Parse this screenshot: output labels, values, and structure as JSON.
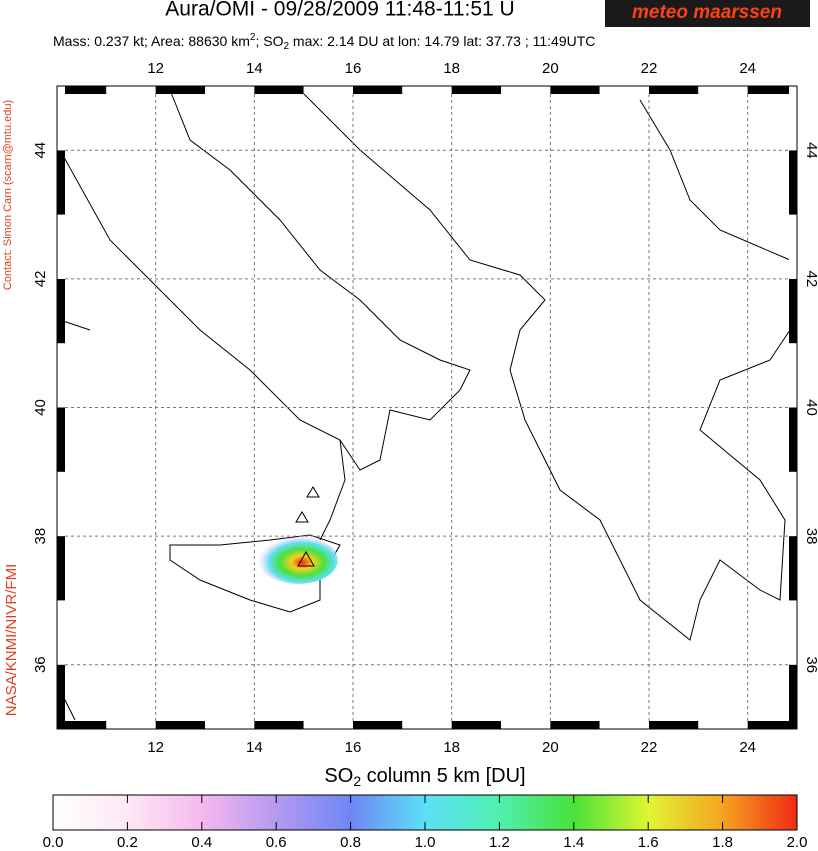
{
  "header": {
    "title": "Aura/OMI - 09/28/2009 11:48-11:51 U",
    "logo": "meteo maarssen",
    "stats": [
      "Mass: 0.237 kt; Area: 88630 km",
      "2",
      "; SO",
      "2",
      " max: 2.14 DU at lon: 14.79 lat: 37.73 ; 11:49UTC"
    ]
  },
  "side": {
    "contact": "Contact: Simon Carn (scarn@mtu.edu)",
    "credit": "NASA/KNMI/NIVR/FMI"
  },
  "map": {
    "xlim": [
      10,
      25
    ],
    "ylim": [
      35,
      45
    ],
    "xticks": [
      12,
      14,
      16,
      18,
      20,
      22,
      24
    ],
    "yticks": [
      36,
      38,
      40,
      42,
      44
    ]
  },
  "colorbar": {
    "label": [
      "SO",
      "2",
      " column 5 km [DU]"
    ],
    "lim": [
      0,
      2
    ],
    "ticks": [
      {
        "value": 0,
        "label": "0.0"
      },
      {
        "value": 0.2,
        "label": "0.2"
      },
      {
        "value": 0.4,
        "label": "0.4"
      },
      {
        "value": 0.6,
        "label": "0.6"
      },
      {
        "value": 0.8,
        "label": "0.8"
      },
      {
        "value": 1,
        "label": "1.0"
      },
      {
        "value": 1.2,
        "label": "1.2"
      },
      {
        "value": 1.4,
        "label": "1.4"
      },
      {
        "value": 1.6,
        "label": "1.6"
      },
      {
        "value": 1.8,
        "label": "1.8"
      },
      {
        "value": 2,
        "label": "2.0"
      }
    ]
  }
}
